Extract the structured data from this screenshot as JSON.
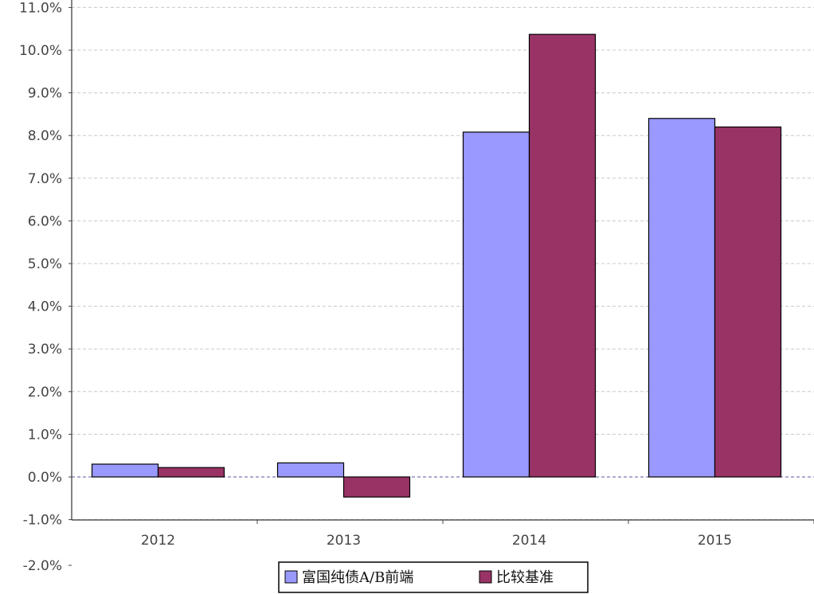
{
  "chart_data": {
    "type": "bar",
    "categories": [
      "2012",
      "2013",
      "2014",
      "2015"
    ],
    "series": [
      {
        "name": "富国纯债A/B前端",
        "values": [
          0.3,
          0.33,
          8.08,
          8.4
        ],
        "color": "#9999ff"
      },
      {
        "name": "比较基准",
        "values": [
          0.22,
          -0.47,
          10.37,
          8.2
        ],
        "color": "#993366"
      }
    ],
    "y_ticks": [
      "11.0%",
      "10.0%",
      "9.0%",
      "8.0%",
      "7.0%",
      "6.0%",
      "5.0%",
      "4.0%",
      "3.0%",
      "2.0%",
      "1.0%",
      "0.0%",
      "-1.0%",
      "-2.0%"
    ],
    "ylim": [
      -2,
      11
    ],
    "grid": true,
    "legend": "bottom-center",
    "title": "",
    "xlabel": "",
    "ylabel": ""
  }
}
